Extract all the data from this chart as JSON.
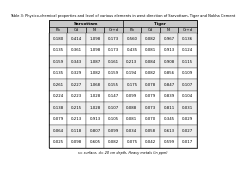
{
  "title": "Table 3: Physico-chemical properties and level of various elements in west direction of Sarvottam, Tiger and Nokha Cement",
  "col_groups": [
    {
      "label": "Sarvottam",
      "span": 4
    },
    {
      "label": "Tiger",
      "span": 4
    }
  ],
  "headers": [
    "Pb",
    "Cd",
    "Ni",
    "Cr+d",
    "Pb",
    "Cd",
    "Ni",
    "Cr+d"
  ],
  "rows": [
    [
      0.18,
      0.414,
      1.098,
      0.173,
      0.56,
      0.082,
      0.967,
      0.136
    ],
    [
      0.135,
      0.361,
      1.098,
      0.173,
      0.435,
      0.081,
      0.913,
      0.124
    ],
    [
      0.159,
      0.343,
      1.087,
      0.161,
      0.213,
      0.084,
      0.908,
      0.115
    ],
    [
      0.135,
      0.329,
      1.082,
      0.159,
      0.194,
      0.082,
      0.856,
      0.109
    ],
    [
      0.261,
      0.227,
      1.068,
      0.155,
      0.175,
      0.078,
      0.847,
      0.107
    ],
    [
      0.224,
      0.223,
      1.028,
      0.147,
      0.099,
      0.079,
      0.839,
      0.104
    ],
    [
      0.138,
      0.215,
      1.028,
      0.107,
      0.088,
      0.073,
      0.811,
      0.031
    ],
    [
      0.079,
      0.213,
      0.913,
      0.105,
      0.081,
      0.07,
      0.345,
      0.029
    ],
    [
      0.064,
      0.118,
      0.807,
      0.099,
      0.034,
      0.058,
      0.613,
      0.027
    ],
    [
      0.025,
      0.098,
      0.605,
      0.082,
      0.075,
      0.042,
      0.599,
      0.017
    ]
  ],
  "footnote": "s= surface, d= 20 cm depth, Heavy metals (in ppm)",
  "bg_color": "#ffffff",
  "header_bg": "#c8c8c8",
  "group_bg": "#c8c8c8",
  "line_color": "#000000",
  "font_size": 2.8,
  "header_font_size": 3.0,
  "title_font_size": 2.6,
  "footnote_font_size": 2.4
}
